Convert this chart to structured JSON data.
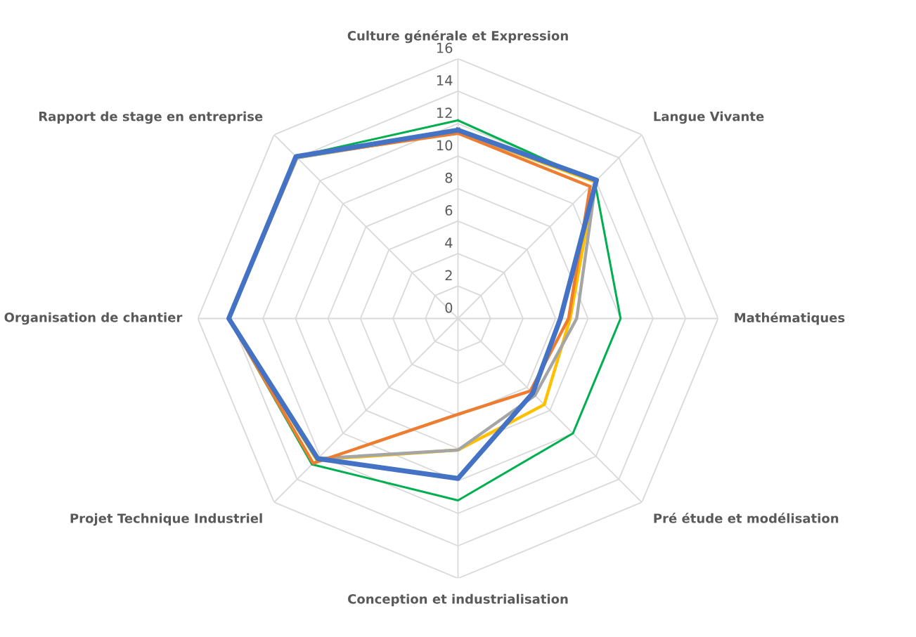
{
  "chart_data": {
    "type": "radar",
    "categories": [
      "Culture générale et Expression",
      "Langue Vivante",
      "Mathématiques",
      "Pré étude et modélisation",
      "Conception et industrialisation",
      "Projet Technique Industriel",
      "Organisation de chantier",
      "Rapport de stage en entreprise"
    ],
    "ylim": [
      0,
      16
    ],
    "yticks": [
      0,
      2,
      4,
      6,
      8,
      10,
      12,
      14,
      16
    ],
    "grid": true,
    "legend": false,
    "series": [
      {
        "color": "#00b050",
        "values": [
          12.2,
          11.9,
          10.0,
          10.0,
          11.2,
          12.7,
          14.1,
          14.1
        ]
      },
      {
        "color": "#ffc000",
        "values": [
          11.5,
          11.9,
          6.9,
          7.5,
          8.1,
          12.3,
          14.1,
          14.0
        ]
      },
      {
        "color": "#a5a5a5",
        "values": [
          11.5,
          12.0,
          7.3,
          6.7,
          8.1,
          12.2,
          14.1,
          14.0
        ]
      },
      {
        "color": "#ed7d31",
        "values": [
          11.4,
          11.5,
          6.8,
          6.3,
          5.9,
          12.6,
          14.1,
          14.1
        ]
      },
      {
        "color": "#4472c4",
        "values": [
          11.6,
          12.05,
          6.3,
          6.5,
          9.85,
          12.2,
          14.1,
          14.1
        ]
      }
    ]
  }
}
